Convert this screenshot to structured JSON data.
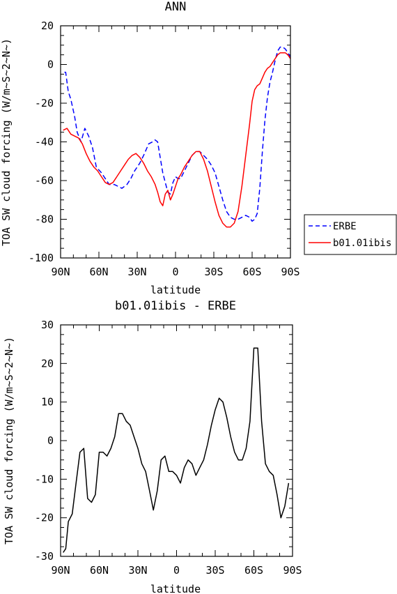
{
  "chart_data": [
    {
      "type": "line",
      "title": "ANN",
      "xlabel": "latitude",
      "ylabel": "TOA SW cloud forcing (W/m~S~2~N~)",
      "x_ticks": [
        "90N",
        "60N",
        "30N",
        "0",
        "30S",
        "60S",
        "90S"
      ],
      "x_tick_values": [
        -90,
        -60,
        -30,
        0,
        30,
        60,
        90
      ],
      "xlim": [
        -90,
        90
      ],
      "ylim": [
        -100,
        20
      ],
      "y_ticks": [
        20,
        0,
        -20,
        -40,
        -60,
        -80,
        -100
      ],
      "legend_position": "right-outside",
      "series": [
        {
          "name": "ERBE",
          "color": "#0000ff",
          "style": "dashed",
          "x": [
            -87,
            -86,
            -84,
            -82,
            -79,
            -77,
            -74,
            -71,
            -68,
            -65,
            -62,
            -58,
            -55,
            -52,
            -48,
            -45,
            -42,
            -38,
            -35,
            -32,
            -28,
            -25,
            -21,
            -18,
            -16,
            -14,
            -12,
            -10,
            -8,
            -6,
            -4,
            -2,
            0,
            2,
            4,
            7,
            10,
            13,
            16,
            19,
            22,
            25,
            28,
            31,
            34,
            37,
            40,
            43,
            46,
            49,
            52,
            55,
            58,
            60,
            62,
            64,
            66,
            68,
            70,
            72,
            74,
            76,
            78,
            80,
            82,
            84,
            86,
            88,
            90
          ],
          "y": [
            -4,
            -4,
            -14,
            -18,
            -27,
            -35,
            -40,
            -33,
            -37,
            -43,
            -53,
            -56,
            -59,
            -62,
            -62,
            -63,
            -64,
            -62,
            -59,
            -55,
            -51,
            -47,
            -41,
            -40,
            -39,
            -40,
            -48,
            -56,
            -61,
            -66,
            -67,
            -61,
            -58,
            -59,
            -59,
            -55,
            -51,
            -47,
            -45,
            -45,
            -47,
            -49,
            -52,
            -56,
            -63,
            -70,
            -76,
            -79,
            -80,
            -80,
            -79,
            -78,
            -79,
            -81,
            -80,
            -77,
            -64,
            -45,
            -29,
            -17,
            -9,
            -4,
            2,
            7,
            9,
            9,
            8,
            6,
            4
          ]
        },
        {
          "name": "b01.01ibis",
          "color": "#ff0000",
          "style": "solid",
          "x": [
            -88,
            -85,
            -82,
            -79,
            -76,
            -73,
            -70,
            -67,
            -64,
            -61,
            -58,
            -55,
            -52,
            -49,
            -46,
            -43,
            -40,
            -37,
            -34,
            -31,
            -28,
            -25,
            -22,
            -19,
            -16,
            -14,
            -12,
            -10,
            -8,
            -6,
            -4,
            -2,
            0,
            2,
            4,
            7,
            10,
            13,
            16,
            19,
            22,
            25,
            28,
            31,
            34,
            37,
            40,
            43,
            46,
            49,
            52,
            55,
            58,
            60,
            62,
            64,
            66,
            68,
            70,
            72,
            74,
            76,
            78,
            80,
            82,
            84,
            86,
            88,
            90
          ],
          "y": [
            -34,
            -33,
            -36,
            -37,
            -38,
            -41,
            -46,
            -50,
            -53,
            -55,
            -58,
            -61,
            -62,
            -61,
            -58,
            -55,
            -52,
            -49,
            -47,
            -46,
            -48,
            -51,
            -55,
            -58,
            -62,
            -66,
            -71,
            -73,
            -67,
            -65,
            -70,
            -67,
            -63,
            -59,
            -57,
            -53,
            -50,
            -47,
            -45,
            -45,
            -49,
            -55,
            -63,
            -71,
            -78,
            -82,
            -84,
            -84,
            -82,
            -76,
            -63,
            -47,
            -31,
            -19,
            -13,
            -11,
            -10,
            -7,
            -4,
            -2,
            -1,
            1,
            3,
            5,
            6,
            6,
            6,
            5,
            3
          ]
        }
      ]
    },
    {
      "type": "line",
      "title": "b01.01ibis - ERBE",
      "xlabel": "latitude",
      "ylabel": "TOA SW cloud forcing (W/m~S~2~N~)",
      "x_ticks": [
        "90N",
        "60N",
        "30N",
        "0",
        "30S",
        "60S",
        "90S"
      ],
      "x_tick_values": [
        -90,
        -60,
        -30,
        0,
        30,
        60,
        90
      ],
      "xlim": [
        -90,
        90
      ],
      "ylim": [
        -30,
        30
      ],
      "y_ticks": [
        30,
        20,
        10,
        0,
        -10,
        -20,
        -30
      ],
      "series": [
        {
          "color": "#000000",
          "style": "solid",
          "x": [
            -88,
            -86,
            -84,
            -81,
            -78,
            -75,
            -72,
            -69,
            -66,
            -63,
            -60,
            -57,
            -54,
            -51,
            -48,
            -45,
            -42,
            -39,
            -36,
            -33,
            -30,
            -27,
            -24,
            -21,
            -18,
            -15,
            -12,
            -9,
            -6,
            -3,
            0,
            3,
            6,
            9,
            12,
            15,
            18,
            21,
            24,
            27,
            30,
            33,
            36,
            39,
            42,
            45,
            48,
            51,
            54,
            57,
            60,
            63,
            66,
            69,
            72,
            75,
            78,
            81,
            84,
            87
          ],
          "y": [
            -29,
            -28,
            -21,
            -19,
            -11,
            -3,
            -2,
            -15,
            -16,
            -14,
            -3,
            -3,
            -4,
            -2,
            1,
            7,
            7,
            5,
            4,
            1,
            -2,
            -6,
            -8,
            -13,
            -18,
            -13,
            -5,
            -4,
            -8,
            -8,
            -9,
            -11,
            -7,
            -5,
            -6,
            -9,
            -7,
            -5,
            -1,
            4,
            8,
            11,
            10,
            6,
            1,
            -3,
            -5,
            -5,
            -2,
            5,
            24,
            24,
            5,
            -6,
            -8,
            -9,
            -14,
            -20,
            -17,
            -11
          ]
        }
      ]
    }
  ]
}
